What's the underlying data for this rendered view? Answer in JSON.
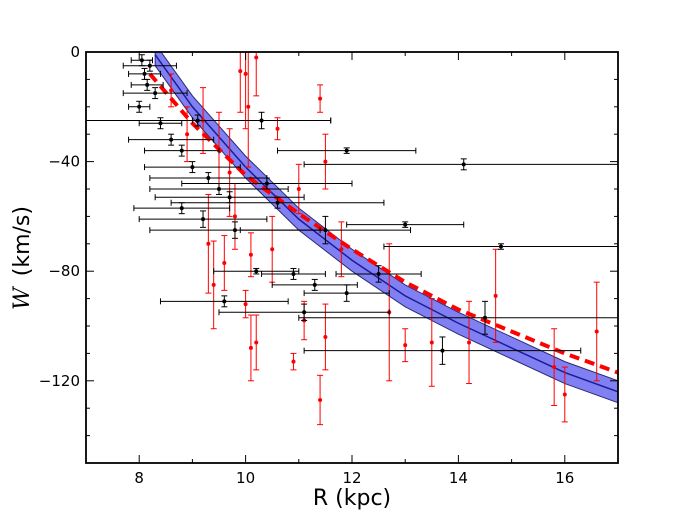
{
  "chart_data": {
    "type": "scatter",
    "title": "",
    "xlabel": "R (kpc)",
    "ylabel_symbol": "W",
    "ylabel_unit": "(km/s)",
    "xlim": [
      7,
      17
    ],
    "ylim": [
      -150,
      0
    ],
    "xticks": [
      8,
      10,
      12,
      14,
      16
    ],
    "yticks": [
      0,
      -40,
      -80,
      -120
    ],
    "grid": false,
    "colors": {
      "band_fill": "#5555ee",
      "band_edge": "#2a2a7a",
      "model_line": "#1c1c9a",
      "dashed_line": "#ff0000",
      "red_points": "#ff0000",
      "black_points": "#000000"
    },
    "model_band": {
      "name": "model",
      "x": [
        8.3,
        9.0,
        10.0,
        11.0,
        12.0,
        13.0,
        14.0,
        15.0,
        16.0,
        17.0
      ],
      "y": [
        -1,
        -20,
        -42,
        -61,
        -76,
        -89,
        -99,
        -108,
        -117,
        -124
      ],
      "halfwidth": [
        4,
        4,
        4,
        4,
        4,
        4,
        4,
        4,
        4,
        4
      ]
    },
    "dashed_curve": {
      "name": "fit",
      "x": [
        8.2,
        9.0,
        10.0,
        11.0,
        12.0,
        13.0,
        14.0,
        15.0,
        16.0,
        17.0
      ],
      "y": [
        -8,
        -26,
        -45,
        -59,
        -72,
        -84,
        -94,
        -102,
        -110,
        -117
      ]
    },
    "series": [
      {
        "name": "red",
        "points": [
          {
            "x": 8.6,
            "y": -14,
            "yerr": 6
          },
          {
            "x": 8.9,
            "y": -30,
            "yerr": 10
          },
          {
            "x": 9.2,
            "y": -25,
            "yerr": 12
          },
          {
            "x": 9.5,
            "y": -36,
            "yerr": 14
          },
          {
            "x": 9.7,
            "y": -44,
            "yerr": 16
          },
          {
            "x": 9.9,
            "y": -7,
            "yerr": 15
          },
          {
            "x": 10.0,
            "y": -8,
            "yerr": 20
          },
          {
            "x": 10.05,
            "y": -20,
            "yerr": 22
          },
          {
            "x": 10.2,
            "y": -2,
            "yerr": 14
          },
          {
            "x": 10.6,
            "y": -28,
            "yerr": 4
          },
          {
            "x": 11.4,
            "y": -17,
            "yerr": 5
          },
          {
            "x": 11.5,
            "y": -40,
            "yerr": 10
          },
          {
            "x": 9.3,
            "y": -70,
            "yerr": 18
          },
          {
            "x": 9.4,
            "y": -85,
            "yerr": 16
          },
          {
            "x": 9.6,
            "y": -77,
            "yerr": 10
          },
          {
            "x": 9.8,
            "y": -60,
            "yerr": 12
          },
          {
            "x": 10.0,
            "y": -92,
            "yerr": 5
          },
          {
            "x": 10.1,
            "y": -74,
            "yerr": 8
          },
          {
            "x": 10.1,
            "y": -108,
            "yerr": 12
          },
          {
            "x": 10.2,
            "y": -106,
            "yerr": 10
          },
          {
            "x": 10.5,
            "y": -72,
            "yerr": 12
          },
          {
            "x": 10.9,
            "y": -113,
            "yerr": 3
          },
          {
            "x": 11.0,
            "y": -50,
            "yerr": 9
          },
          {
            "x": 11.1,
            "y": -98,
            "yerr": 7
          },
          {
            "x": 11.4,
            "y": -127,
            "yerr": 9
          },
          {
            "x": 11.5,
            "y": -104,
            "yerr": 12
          },
          {
            "x": 11.8,
            "y": -72,
            "yerr": 10
          },
          {
            "x": 12.7,
            "y": -95,
            "yerr": 25
          },
          {
            "x": 13.0,
            "y": -107,
            "yerr": 6
          },
          {
            "x": 13.5,
            "y": -106,
            "yerr": 16
          },
          {
            "x": 14.2,
            "y": -106,
            "yerr": 15
          },
          {
            "x": 14.7,
            "y": -89,
            "yerr": 17
          },
          {
            "x": 15.8,
            "y": -115,
            "yerr": 14
          },
          {
            "x": 16.0,
            "y": -125,
            "yerr": 10
          },
          {
            "x": 16.6,
            "y": -102,
            "yerr": 18
          }
        ]
      },
      {
        "name": "black",
        "points": [
          {
            "x": 8.05,
            "y": -3,
            "xerr": 0.2,
            "yerr": 2
          },
          {
            "x": 8.1,
            "y": -8,
            "xerr": 0.3,
            "yerr": 2
          },
          {
            "x": 8.2,
            "y": -5,
            "xerr": 0.5,
            "yerr": 2
          },
          {
            "x": 8.15,
            "y": -12,
            "xerr": 0.3,
            "yerr": 2
          },
          {
            "x": 8.3,
            "y": -15,
            "xerr": 0.6,
            "yerr": 2
          },
          {
            "x": 8.0,
            "y": -20,
            "xerr": 0.2,
            "yerr": 2
          },
          {
            "x": 8.4,
            "y": -26,
            "xerr": 0.4,
            "yerr": 2
          },
          {
            "x": 8.6,
            "y": -32,
            "xerr": 0.8,
            "yerr": 2
          },
          {
            "x": 8.8,
            "y": -36,
            "xerr": 0.7,
            "yerr": 2
          },
          {
            "x": 9.1,
            "y": -25,
            "xerr": 2.5,
            "yerr": 2
          },
          {
            "x": 10.3,
            "y": -25,
            "xerr": 1.3,
            "yerr": 3
          },
          {
            "x": 9.0,
            "y": -42,
            "xerr": 0.9,
            "yerr": 2
          },
          {
            "x": 9.3,
            "y": -46,
            "xerr": 1.1,
            "yerr": 2
          },
          {
            "x": 9.5,
            "y": -50,
            "xerr": 1.3,
            "yerr": 2
          },
          {
            "x": 9.7,
            "y": -53,
            "xerr": 1.4,
            "yerr": 2
          },
          {
            "x": 8.8,
            "y": -57,
            "xerr": 0.9,
            "yerr": 2
          },
          {
            "x": 9.2,
            "y": -61,
            "xerr": 1.2,
            "yerr": 3
          },
          {
            "x": 9.8,
            "y": -65,
            "xerr": 1.6,
            "yerr": 3
          },
          {
            "x": 10.4,
            "y": -48,
            "xerr": 1.6,
            "yerr": 2
          },
          {
            "x": 10.6,
            "y": -55,
            "xerr": 2.0,
            "yerr": 2
          },
          {
            "x": 11.9,
            "y": -36,
            "xerr": 1.3,
            "yerr": 1
          },
          {
            "x": 14.1,
            "y": -41,
            "xerr": 3.0,
            "yerr": 2
          },
          {
            "x": 11.5,
            "y": -65,
            "xerr": 1.6,
            "yerr": 5
          },
          {
            "x": 13.0,
            "y": -63,
            "xerr": 1.1,
            "yerr": 1
          },
          {
            "x": 12.5,
            "y": -81,
            "xerr": 0.8,
            "yerr": 3
          },
          {
            "x": 10.9,
            "y": -81,
            "xerr": 0.6,
            "yerr": 2
          },
          {
            "x": 10.2,
            "y": -80,
            "xerr": 0.8,
            "yerr": 1
          },
          {
            "x": 9.6,
            "y": -91,
            "xerr": 1.2,
            "yerr": 2
          },
          {
            "x": 11.3,
            "y": -85,
            "xerr": 0.8,
            "yerr": 2
          },
          {
            "x": 11.9,
            "y": -88,
            "xerr": 0.8,
            "yerr": 3
          },
          {
            "x": 11.1,
            "y": -95,
            "xerr": 1.6,
            "yerr": 3
          },
          {
            "x": 14.8,
            "y": -71,
            "xerr": 2.2,
            "yerr": 1
          },
          {
            "x": 14.5,
            "y": -97,
            "xerr": 3.5,
            "yerr": 6
          },
          {
            "x": 13.7,
            "y": -109,
            "xerr": 2.6,
            "yerr": 5
          }
        ]
      }
    ]
  }
}
